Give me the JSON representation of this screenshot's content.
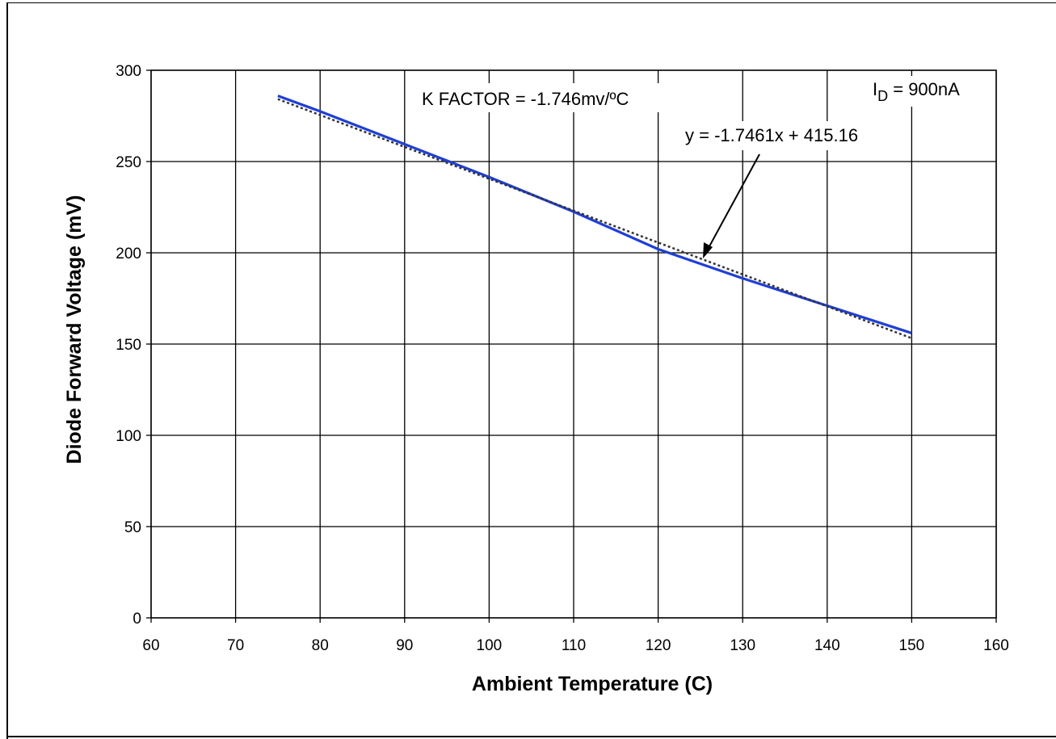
{
  "chart_data": {
    "type": "line",
    "xlabel": "Ambient Temperature (C)",
    "ylabel": "Diode Forward Voltage (mV)",
    "xlim": [
      60,
      160
    ],
    "ylim": [
      0,
      300
    ],
    "x_ticks": [
      60,
      70,
      80,
      90,
      100,
      110,
      120,
      130,
      140,
      150,
      160
    ],
    "y_ticks": [
      0,
      50,
      100,
      150,
      200,
      250,
      300
    ],
    "grid": true,
    "series": [
      {
        "style": "solid",
        "color": "#1f3fd6",
        "x": [
          75,
          80,
          90,
          100,
          110,
          120,
          130,
          140,
          150
        ],
        "y": [
          286,
          277.5,
          259.5,
          241.5,
          222.5,
          202,
          186,
          171,
          156
        ]
      },
      {
        "style": "dotted",
        "trendline": true,
        "color": "#333333",
        "slope": -1.7461,
        "intercept": 415.16,
        "x": [
          75,
          150
        ],
        "y": [
          284.2,
          153.2
        ]
      }
    ],
    "annotations": {
      "k_factor": "K FACTOR = -1.746mv/ºC",
      "current_prefix": "I",
      "current_subscript": "D",
      "current_suffix": " = 900nA",
      "equation": "y = -1.7461x + 415.16"
    }
  }
}
